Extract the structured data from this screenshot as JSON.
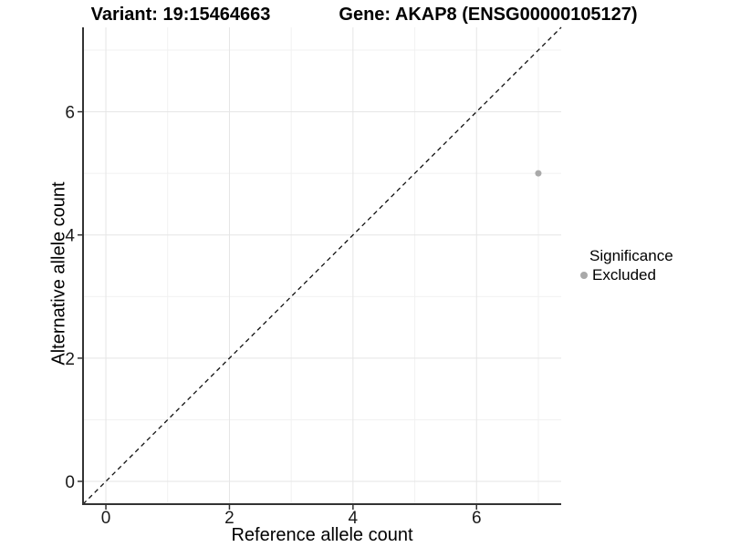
{
  "figure": {
    "title_left": "Variant: 19:15464663",
    "title_right": "Gene: AKAP8 (ENSG00000105127)"
  },
  "chart_data": {
    "type": "scatter",
    "title": "Variant: 19:15464663 — Gene: AKAP8 (ENSG00000105127)",
    "xlabel": "Reference allele count",
    "ylabel": "Alternative allele count",
    "xlim": [
      -0.37,
      7.37
    ],
    "ylim": [
      -0.37,
      7.37
    ],
    "x_major_ticks": [
      0,
      2,
      4,
      6
    ],
    "x_minor_ticks": [
      1,
      3,
      5,
      7
    ],
    "y_major_ticks": [
      0,
      2,
      4,
      6
    ],
    "y_minor_ticks": [
      1,
      3,
      5,
      7
    ],
    "grid": true,
    "series": [
      {
        "name": "Excluded",
        "color": "#a9a9a9",
        "points": [
          {
            "x": 7,
            "y": 5
          }
        ]
      }
    ],
    "reference_line": {
      "type": "identity",
      "slope": 1,
      "intercept": 0,
      "style": "dashed",
      "color": "#111111"
    },
    "legend": {
      "title": "Significance",
      "position": "right",
      "items": [
        {
          "label": "Excluded",
          "marker": "dot-icon",
          "color": "#a9a9a9"
        }
      ]
    },
    "colors": {
      "background": "#ffffff",
      "grid_major": "#e5e5e5",
      "grid_minor": "#f1f1f1",
      "axis_line": "#333333",
      "tick": "#333333",
      "tick_label": "#1a1a1a",
      "point": "#a9a9a9"
    }
  }
}
